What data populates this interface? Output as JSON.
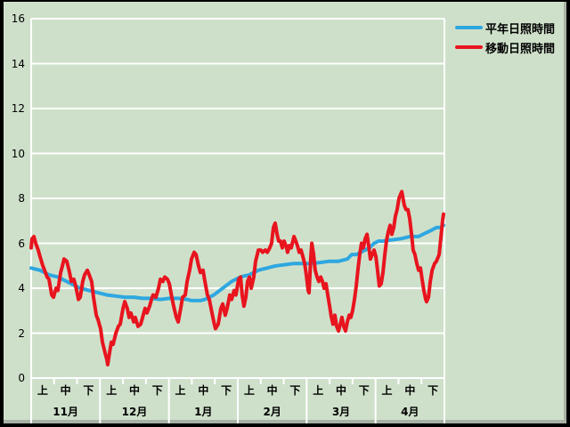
{
  "window": {
    "background_color": "#cfe0ca",
    "border_color": "#000000",
    "bevel_color": "#a8b2a4",
    "gridline_color": "#ffffff",
    "text_color": "#000000"
  },
  "legend": {
    "items": [
      {
        "label": "平年日照時間",
        "color": "#2ea7e0"
      },
      {
        "label": "移動日照時間",
        "color": "#e8141e"
      }
    ]
  },
  "chart_data": {
    "type": "line",
    "title": "",
    "xlabel": "",
    "ylabel": "",
    "grid": "horizontal-white",
    "legend_position": "top-right",
    "y_axis": {
      "min": 0,
      "max": 16,
      "tick_step": 2,
      "tick_labels": [
        "0",
        "2",
        "4",
        "6",
        "8",
        "10",
        "12",
        "14",
        "16"
      ]
    },
    "x_axis": {
      "months": [
        "11月",
        "12月",
        "1月",
        "2月",
        "3月",
        "4月"
      ],
      "thirds": [
        "上",
        "中",
        "下"
      ],
      "total_days": 181,
      "note": "x of each point = day index from Nov 1 (0) to Apr 30 (181)"
    },
    "series": [
      {
        "name": "平年日照時間",
        "color": "#2ea7e0",
        "width": 4,
        "points": [
          [
            0,
            4.9
          ],
          [
            3.9,
            4.8
          ],
          [
            7.8,
            4.6
          ],
          [
            11.7,
            4.5
          ],
          [
            15.6,
            4.3
          ],
          [
            19.5,
            4.1
          ],
          [
            21.5,
            4.0
          ],
          [
            25.4,
            3.9
          ],
          [
            29.3,
            3.8
          ],
          [
            33.2,
            3.7
          ],
          [
            37.1,
            3.65
          ],
          [
            41,
            3.6
          ],
          [
            44.9,
            3.6
          ],
          [
            48.8,
            3.55
          ],
          [
            52.7,
            3.55
          ],
          [
            56.6,
            3.5
          ],
          [
            60.5,
            3.55
          ],
          [
            64.4,
            3.55
          ],
          [
            68.3,
            3.5
          ],
          [
            70.2,
            3.45
          ],
          [
            72.2,
            3.45
          ],
          [
            74.1,
            3.45
          ],
          [
            76.1,
            3.5
          ],
          [
            78,
            3.6
          ],
          [
            80,
            3.7
          ],
          [
            81.9,
            3.85
          ],
          [
            83.9,
            4.0
          ],
          [
            85.8,
            4.15
          ],
          [
            87.8,
            4.3
          ],
          [
            89.7,
            4.4
          ],
          [
            91.7,
            4.5
          ],
          [
            93.6,
            4.55
          ],
          [
            95.6,
            4.6
          ],
          [
            97.5,
            4.7
          ],
          [
            99.5,
            4.8
          ],
          [
            101.4,
            4.85
          ],
          [
            103.4,
            4.9
          ],
          [
            105.3,
            4.95
          ],
          [
            107.3,
            5.0
          ],
          [
            111.2,
            5.05
          ],
          [
            115.1,
            5.1
          ],
          [
            119,
            5.1
          ],
          [
            122.9,
            5.1
          ],
          [
            126.8,
            5.15
          ],
          [
            130.7,
            5.2
          ],
          [
            134.6,
            5.2
          ],
          [
            138.5,
            5.3
          ],
          [
            140.4,
            5.5
          ],
          [
            142.4,
            5.5
          ],
          [
            144.3,
            5.6
          ],
          [
            146.3,
            5.7
          ],
          [
            148.2,
            5.8
          ],
          [
            150.2,
            6.0
          ],
          [
            152.1,
            6.1
          ],
          [
            154.1,
            6.1
          ],
          [
            158,
            6.15
          ],
          [
            161.9,
            6.2
          ],
          [
            165.8,
            6.3
          ],
          [
            169.7,
            6.3
          ],
          [
            171.6,
            6.4
          ],
          [
            173.6,
            6.5
          ],
          [
            175.6,
            6.6
          ],
          [
            177.5,
            6.7
          ],
          [
            179.4,
            6.7
          ],
          [
            180.6,
            6.8
          ]
        ]
      },
      {
        "name": "移動日照時間",
        "color": "#e8141e",
        "width": 4,
        "points": [
          [
            0,
            5.8
          ],
          [
            0.4,
            6.2
          ],
          [
            1.2,
            6.3
          ],
          [
            2,
            6.0
          ],
          [
            3.1,
            5.7
          ],
          [
            3.9,
            5.4
          ],
          [
            5.1,
            5.0
          ],
          [
            5.9,
            4.8
          ],
          [
            7,
            4.5
          ],
          [
            7.8,
            4.4
          ],
          [
            9,
            3.7
          ],
          [
            9.8,
            3.6
          ],
          [
            10.9,
            4.0
          ],
          [
            11.7,
            3.9
          ],
          [
            12.9,
            4.7
          ],
          [
            13.7,
            5.0
          ],
          [
            14.4,
            5.3
          ],
          [
            15.6,
            5.2
          ],
          [
            16.8,
            4.7
          ],
          [
            17.6,
            4.3
          ],
          [
            18.7,
            4.4
          ],
          [
            19.5,
            4.1
          ],
          [
            20.7,
            3.5
          ],
          [
            21.5,
            3.6
          ],
          [
            22.6,
            4.3
          ],
          [
            23.4,
            4.6
          ],
          [
            24.6,
            4.8
          ],
          [
            25.4,
            4.6
          ],
          [
            26.5,
            4.3
          ],
          [
            27.3,
            3.6
          ],
          [
            28.5,
            2.8
          ],
          [
            29.3,
            2.6
          ],
          [
            30.4,
            2.2
          ],
          [
            31.2,
            1.6
          ],
          [
            32.4,
            1.1
          ],
          [
            33.2,
            0.8
          ],
          [
            33.5,
            0.6
          ],
          [
            34.3,
            1.1
          ],
          [
            35.1,
            1.6
          ],
          [
            35.9,
            1.5
          ],
          [
            37.1,
            2.0
          ],
          [
            38.2,
            2.3
          ],
          [
            39,
            2.4
          ],
          [
            40.2,
            3.1
          ],
          [
            41,
            3.4
          ],
          [
            42.1,
            3.1
          ],
          [
            42.9,
            2.7
          ],
          [
            43.7,
            2.9
          ],
          [
            44.9,
            2.5
          ],
          [
            45.6,
            2.7
          ],
          [
            46.8,
            2.3
          ],
          [
            48,
            2.4
          ],
          [
            48.8,
            2.7
          ],
          [
            49.9,
            3.1
          ],
          [
            50.7,
            2.9
          ],
          [
            51.9,
            3.2
          ],
          [
            52.7,
            3.5
          ],
          [
            53.4,
            3.7
          ],
          [
            54.6,
            3.6
          ],
          [
            55.8,
            4.0
          ],
          [
            56.6,
            4.4
          ],
          [
            57.7,
            4.3
          ],
          [
            58.5,
            4.5
          ],
          [
            59.7,
            4.4
          ],
          [
            60.5,
            4.2
          ],
          [
            61.6,
            3.6
          ],
          [
            62.4,
            3.2
          ],
          [
            63.6,
            2.7
          ],
          [
            64.4,
            2.5
          ],
          [
            65.5,
            3.1
          ],
          [
            66.3,
            3.6
          ],
          [
            67.5,
            3.7
          ],
          [
            68.3,
            4.3
          ],
          [
            69.4,
            4.8
          ],
          [
            70.2,
            5.3
          ],
          [
            71.4,
            5.6
          ],
          [
            72.2,
            5.5
          ],
          [
            73.3,
            5.0
          ],
          [
            74.1,
            4.7
          ],
          [
            75.3,
            4.8
          ],
          [
            76.1,
            4.3
          ],
          [
            77.2,
            3.7
          ],
          [
            78,
            3.5
          ],
          [
            79.2,
            2.9
          ],
          [
            80,
            2.5
          ],
          [
            80.7,
            2.2
          ],
          [
            81.9,
            2.4
          ],
          [
            83.1,
            3.1
          ],
          [
            83.9,
            3.3
          ],
          [
            85,
            2.8
          ],
          [
            85.8,
            3.1
          ],
          [
            87,
            3.7
          ],
          [
            87.8,
            3.5
          ],
          [
            88.9,
            3.9
          ],
          [
            89.7,
            3.7
          ],
          [
            90.9,
            4.4
          ],
          [
            91.7,
            4.5
          ],
          [
            92.4,
            3.7
          ],
          [
            93.2,
            3.2
          ],
          [
            94,
            3.6
          ],
          [
            94.8,
            4.3
          ],
          [
            95.6,
            4.5
          ],
          [
            96.4,
            4.0
          ],
          [
            97.5,
            4.5
          ],
          [
            98.3,
            5.2
          ],
          [
            99.5,
            5.7
          ],
          [
            100.6,
            5.7
          ],
          [
            101.4,
            5.6
          ],
          [
            102.6,
            5.7
          ],
          [
            103.4,
            5.6
          ],
          [
            104.5,
            5.8
          ],
          [
            105.3,
            6.0
          ],
          [
            106.1,
            6.7
          ],
          [
            106.9,
            6.9
          ],
          [
            107.7,
            6.4
          ],
          [
            108.4,
            6.1
          ],
          [
            109.2,
            6.1
          ],
          [
            110,
            5.8
          ],
          [
            110.8,
            6.1
          ],
          [
            111.6,
            5.9
          ],
          [
            112.3,
            5.6
          ],
          [
            113.1,
            5.9
          ],
          [
            113.9,
            5.8
          ],
          [
            115.1,
            6.3
          ],
          [
            115.9,
            6.1
          ],
          [
            116.6,
            5.9
          ],
          [
            117.4,
            5.6
          ],
          [
            118.2,
            5.7
          ],
          [
            119,
            5.4
          ],
          [
            119.8,
            5.1
          ],
          [
            120.5,
            4.6
          ],
          [
            121.3,
            3.9
          ],
          [
            121.7,
            3.8
          ],
          [
            122.5,
            5.4
          ],
          [
            122.9,
            6.0
          ],
          [
            123.7,
            5.5
          ],
          [
            124.4,
            4.8
          ],
          [
            125.2,
            4.5
          ],
          [
            126,
            4.3
          ],
          [
            126.8,
            4.5
          ],
          [
            127.6,
            4.3
          ],
          [
            128.3,
            4.0
          ],
          [
            129.1,
            4.2
          ],
          [
            129.9,
            3.7
          ],
          [
            130.7,
            3.2
          ],
          [
            131.5,
            2.7
          ],
          [
            132.2,
            2.4
          ],
          [
            133,
            2.8
          ],
          [
            133.8,
            2.3
          ],
          [
            134.6,
            2.1
          ],
          [
            135.4,
            2.4
          ],
          [
            136.1,
            2.7
          ],
          [
            136.9,
            2.3
          ],
          [
            137.7,
            2.1
          ],
          [
            138.5,
            2.5
          ],
          [
            139.3,
            2.8
          ],
          [
            140,
            2.7
          ],
          [
            140.8,
            3.0
          ],
          [
            141.6,
            3.5
          ],
          [
            142.4,
            4.1
          ],
          [
            143.2,
            4.9
          ],
          [
            143.9,
            5.5
          ],
          [
            144.7,
            6.0
          ],
          [
            145.5,
            5.8
          ],
          [
            146.3,
            6.2
          ],
          [
            147.1,
            6.4
          ],
          [
            147.8,
            5.9
          ],
          [
            148.6,
            5.3
          ],
          [
            149.4,
            5.5
          ],
          [
            150.2,
            5.7
          ],
          [
            151,
            5.4
          ],
          [
            151.7,
            4.8
          ],
          [
            152.5,
            4.1
          ],
          [
            153.3,
            4.2
          ],
          [
            154.1,
            4.7
          ],
          [
            154.9,
            5.5
          ],
          [
            155.6,
            6.1
          ],
          [
            156.4,
            6.5
          ],
          [
            157.2,
            6.8
          ],
          [
            158,
            6.4
          ],
          [
            158.8,
            6.7
          ],
          [
            159.5,
            7.2
          ],
          [
            160.3,
            7.5
          ],
          [
            161.1,
            8.0
          ],
          [
            161.9,
            8.2
          ],
          [
            162.3,
            8.3
          ],
          [
            162.7,
            8.1
          ],
          [
            163.4,
            7.7
          ],
          [
            164.2,
            7.5
          ],
          [
            165,
            7.5
          ],
          [
            165.8,
            7.1
          ],
          [
            166.6,
            6.4
          ],
          [
            167.3,
            5.7
          ],
          [
            168.1,
            5.5
          ],
          [
            168.9,
            5.1
          ],
          [
            169.7,
            4.8
          ],
          [
            170.5,
            4.9
          ],
          [
            171.2,
            4.4
          ],
          [
            172,
            3.9
          ],
          [
            172.8,
            3.5
          ],
          [
            173.2,
            3.4
          ],
          [
            174,
            3.6
          ],
          [
            174.8,
            4.3
          ],
          [
            175.6,
            4.8
          ],
          [
            176.7,
            5.1
          ],
          [
            177.5,
            5.2
          ],
          [
            178.7,
            5.5
          ],
          [
            179.4,
            6.2
          ],
          [
            180.2,
            7.0
          ],
          [
            180.6,
            7.3
          ]
        ]
      }
    ]
  }
}
